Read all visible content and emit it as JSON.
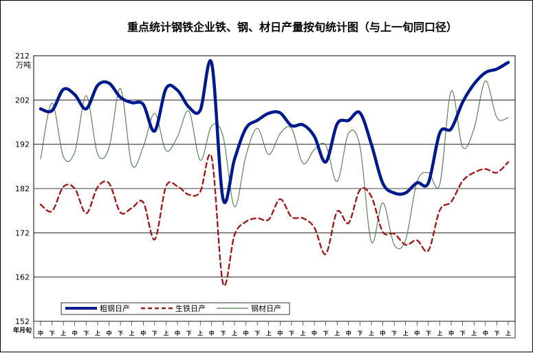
{
  "chart_data": {
    "type": "line",
    "title": "重点统计钢铁企业铁、钢、材日产量按旬统计图（与上一旬同口径）",
    "unit": "万吨",
    "x_axis_label": "年月旬",
    "ylim": [
      152,
      212
    ],
    "yticks": [
      "212",
      "202",
      "192",
      "182",
      "172",
      "162",
      "152"
    ],
    "grid": true,
    "legend_position": "bottom-left",
    "x_period_labels": [
      "中",
      "下",
      "上",
      "中",
      "下",
      "上",
      "中",
      "下",
      "上",
      "中",
      "下",
      "上",
      "中",
      "下",
      "上",
      "中",
      "下",
      "上",
      "中",
      "下",
      "上",
      "中",
      "下",
      "上",
      "中",
      "下",
      "上",
      "中",
      "下",
      "上",
      "中",
      "下",
      "上",
      "中",
      "下",
      "上",
      "中",
      "下",
      "上",
      "中",
      "下",
      "上"
    ],
    "series": [
      {
        "name": "粗钢日产",
        "color": "#001A8C",
        "style": "solid-thick",
        "values": [
          200.0,
          199.6,
          204.4,
          203.2,
          200.0,
          205.3,
          205.8,
          202.6,
          201.4,
          201.0,
          195.0,
          204.6,
          204.2,
          200.4,
          199.7,
          210.3,
          179.6,
          188.6,
          195.6,
          197.4,
          199.0,
          199.1,
          196.2,
          196.4,
          193.8,
          188.0,
          196.6,
          197.4,
          199.1,
          192.0,
          183.2,
          181.0,
          181.0,
          183.3,
          183.3,
          194.6,
          195.5,
          201.5,
          205.6,
          208.2,
          209.0,
          210.5
        ]
      },
      {
        "name": "生铁日产",
        "color": "#9C1C1C",
        "style": "dashed",
        "values": [
          178.4,
          176.9,
          182.4,
          182.0,
          176.4,
          182.3,
          183.2,
          176.6,
          177.6,
          178.9,
          170.5,
          182.5,
          182.5,
          180.6,
          181.3,
          189.0,
          160.5,
          171.5,
          174.5,
          175.3,
          175.0,
          179.6,
          175.6,
          175.3,
          173.2,
          167.2,
          176.8,
          174.2,
          181.7,
          180.2,
          172.2,
          171.8,
          169.3,
          170.3,
          168.0,
          177.1,
          179.0,
          183.7,
          185.6,
          186.4,
          185.6,
          188.0
        ]
      },
      {
        "name": "钢材日产",
        "color": "#4C7A4C",
        "style": "solid-thin",
        "values": [
          188.7,
          201.3,
          189.2,
          190.3,
          203.0,
          189.8,
          191.2,
          204.6,
          187.4,
          191.4,
          199.0,
          190.6,
          193.7,
          199.5,
          188.4,
          196.2,
          193.8,
          177.9,
          189.4,
          195.6,
          189.7,
          194.4,
          195.6,
          187.7,
          190.8,
          191.8,
          183.6,
          194.5,
          191.5,
          170.0,
          178.8,
          169.3,
          170.4,
          183.5,
          185.6,
          183.0,
          204.0,
          191.4,
          195.5,
          206.3,
          198.0,
          198.0
        ]
      }
    ]
  }
}
